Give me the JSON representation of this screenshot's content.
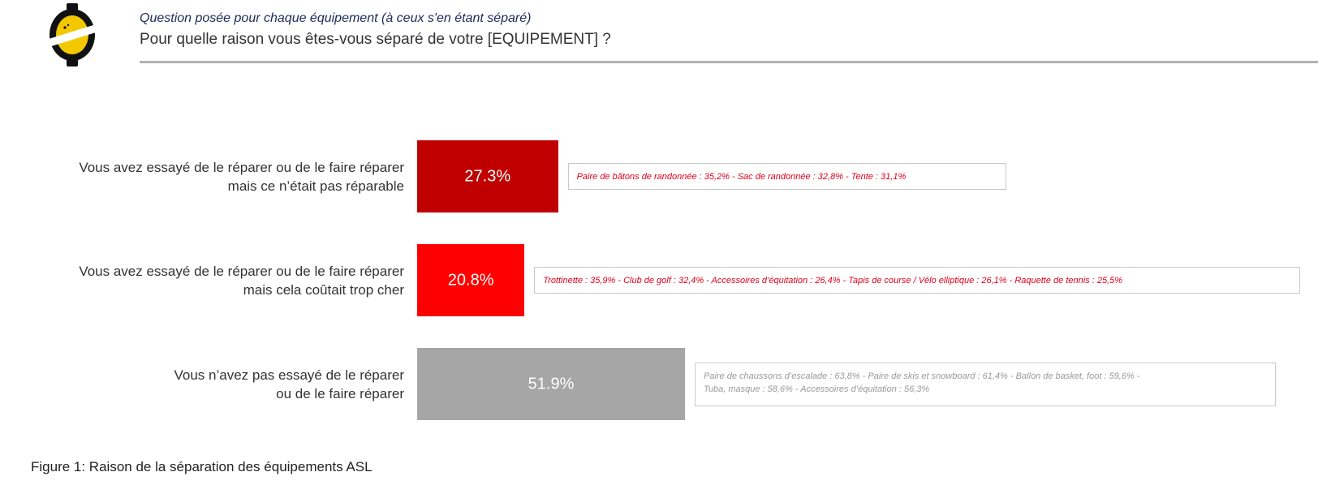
{
  "header": {
    "subtitle": "Question posée pour chaque équipement (à ceux s'en étant séparé)",
    "question": "Pour quelle raison vous êtes-vous séparé de votre [EQUIPEMENT] ?"
  },
  "chart_data": {
    "type": "bar",
    "orientation": "horizontal",
    "categories": [
      "Vous avez essayé de le réparer ou de le faire réparer mais ce n’était pas réparable",
      "Vous avez essayé de le réparer ou de le faire réparer mais cela coûtait trop cher",
      "Vous n’avez pas essayé de le réparer ou de le faire réparer"
    ],
    "category_lines": [
      [
        "Vous avez essayé de le réparer ou de le faire réparer",
        "mais ce n’était pas réparable"
      ],
      [
        "Vous avez essayé de le réparer ou de le faire réparer",
        "mais cela coûtait trop cher"
      ],
      [
        "Vous n’avez pas essayé de le réparer",
        "ou de le faire réparer"
      ]
    ],
    "values": [
      27.3,
      20.8,
      51.9
    ],
    "value_labels": [
      "27.3%",
      "20.8%",
      "51.9%"
    ],
    "unit": "%",
    "colors": [
      "#c00000",
      "#ff0000",
      "#a6a6a6"
    ],
    "annotations": [
      {
        "lines": [
          "Paire de bâtons de randonnée : 35,2% - Sac de randonnée : 32,8% - Tente : 31,1%"
        ],
        "color": "#e0001b"
      },
      {
        "lines": [
          "Trottinette : 35,9% - Club de golf : 32,4% - Accessoires d’équitation : 26,4% - Tapis de course / Vélo elliptique : 26,1% - Raquette de tennis : 25,5%"
        ],
        "color": "#e0001b"
      },
      {
        "lines": [
          "Paire de chaussons d’escalade : 63,8% - Paire de skis et snowboard : 61,4% - Ballon de basket, foot : 59,6% -",
          "Tuba, masque : 58,6% - Accessoires d’équitation : 56,3%"
        ],
        "color": "#9a9a9a"
      }
    ]
  },
  "caption": "Figure 1: Raison de la séparation des équipements ASL"
}
